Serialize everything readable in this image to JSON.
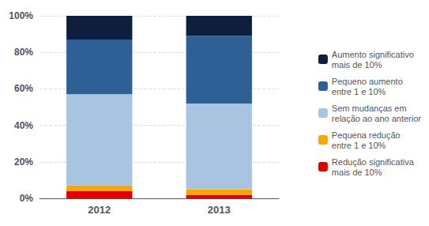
{
  "chart_data": {
    "type": "bar",
    "stacked": true,
    "categories": [
      "2012",
      "2013"
    ],
    "series": [
      {
        "name": "Redução significativa\nmais de 10%",
        "color": "#e00000",
        "values": [
          4,
          2
        ]
      },
      {
        "name": "Pequena redução\nentre 1 e 10%",
        "color": "#f5a800",
        "values": [
          3,
          3
        ]
      },
      {
        "name": "Sem mudanças em\nrelação ao ano anterior",
        "color": "#a8c4e0",
        "values": [
          50,
          47
        ]
      },
      {
        "name": "Pequeno aumento\nentre 1 e 10%",
        "color": "#2e6096",
        "values": [
          30,
          37
        ]
      },
      {
        "name": "Aumento significativo\nmais de 10%",
        "color": "#0d1f3c",
        "values": [
          13,
          11
        ]
      }
    ],
    "ylim": [
      0,
      100
    ],
    "yticks": [
      {
        "value": 0,
        "label": "0%"
      },
      {
        "value": 20,
        "label": "20%"
      },
      {
        "value": 40,
        "label": "40%"
      },
      {
        "value": 60,
        "label": "60%"
      },
      {
        "value": 80,
        "label": "80%"
      },
      {
        "value": 100,
        "label": "100%"
      }
    ],
    "grid": true,
    "legend": "right"
  }
}
